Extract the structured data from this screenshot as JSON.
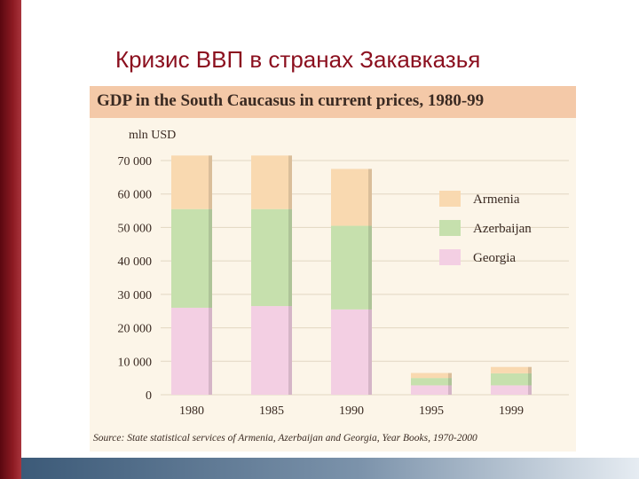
{
  "slide": {
    "title": "Кризис ВВП в странах Закавказья"
  },
  "colors": {
    "Armenia": "#f9d9b0",
    "Azerbaijan": "#c6e0ad",
    "Georgia": "#f3cfe3",
    "header_band": "#f4c9a8",
    "plot_background": "#fcf5e8",
    "title_red": "#8b0f1e"
  },
  "chart_data": {
    "type": "bar",
    "stacked": true,
    "title": "GDP in the South Caucasus in current prices, 1980-99",
    "ylabel": "mln USD",
    "xlabel": "",
    "categories": [
      "1980",
      "1985",
      "1990",
      "1995",
      "1999"
    ],
    "series": [
      {
        "name": "Georgia",
        "values": [
          26000,
          26500,
          25500,
          2800,
          2800
        ]
      },
      {
        "name": "Azerbaijan",
        "values": [
          29500,
          29000,
          25000,
          2200,
          3600
        ]
      },
      {
        "name": "Armenia",
        "values": [
          16000,
          16000,
          17000,
          1500,
          1900
        ]
      }
    ],
    "ylim": [
      0,
      70000
    ],
    "yticks": [
      0,
      10000,
      20000,
      30000,
      40000,
      50000,
      60000,
      70000
    ],
    "ytick_labels": [
      "0",
      "10 000",
      "20 000",
      "30 000",
      "40 000",
      "50 000",
      "60 000",
      "70 000"
    ],
    "legend": [
      "Armenia",
      "Azerbaijan",
      "Georgia"
    ],
    "legend_position": "right",
    "grid": true,
    "source": "Source: State statistical services of Armenia, Azerbaijan and Georgia, Year Books, 1970-2000"
  }
}
